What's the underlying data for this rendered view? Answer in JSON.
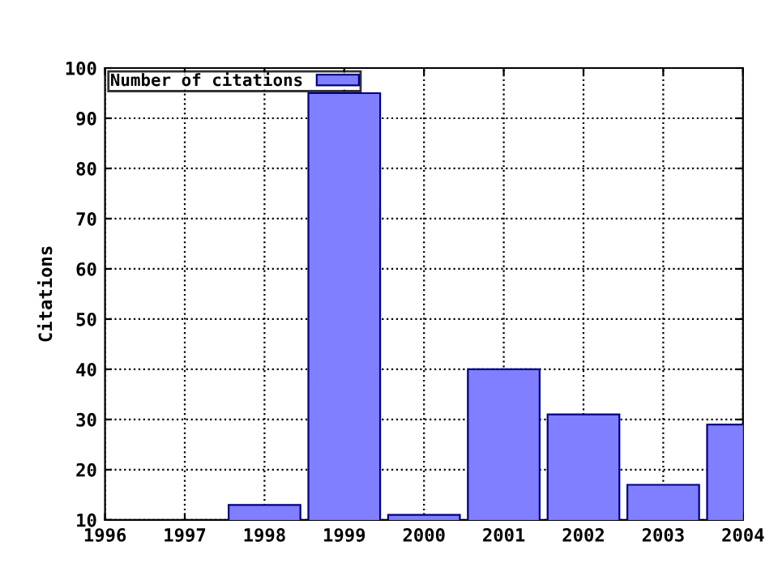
{
  "chart_data": {
    "type": "bar",
    "ylabel": "Citations",
    "x": [
      1998,
      1999,
      2000,
      2001,
      2002,
      2003,
      2004
    ],
    "series": [
      {
        "name": "Number of citations",
        "color": "#7f7fff",
        "values": [
          13,
          95,
          11,
          40,
          31,
          17,
          29
        ]
      }
    ],
    "xlim": [
      1996,
      2004
    ],
    "xticks": [
      1996,
      1997,
      1998,
      1999,
      2000,
      2001,
      2002,
      2003,
      2004
    ],
    "ylim": [
      10,
      100
    ],
    "yticks": [
      10,
      20,
      30,
      40,
      50,
      60,
      70,
      80,
      90,
      100
    ],
    "grid": true,
    "legend": "top left"
  }
}
